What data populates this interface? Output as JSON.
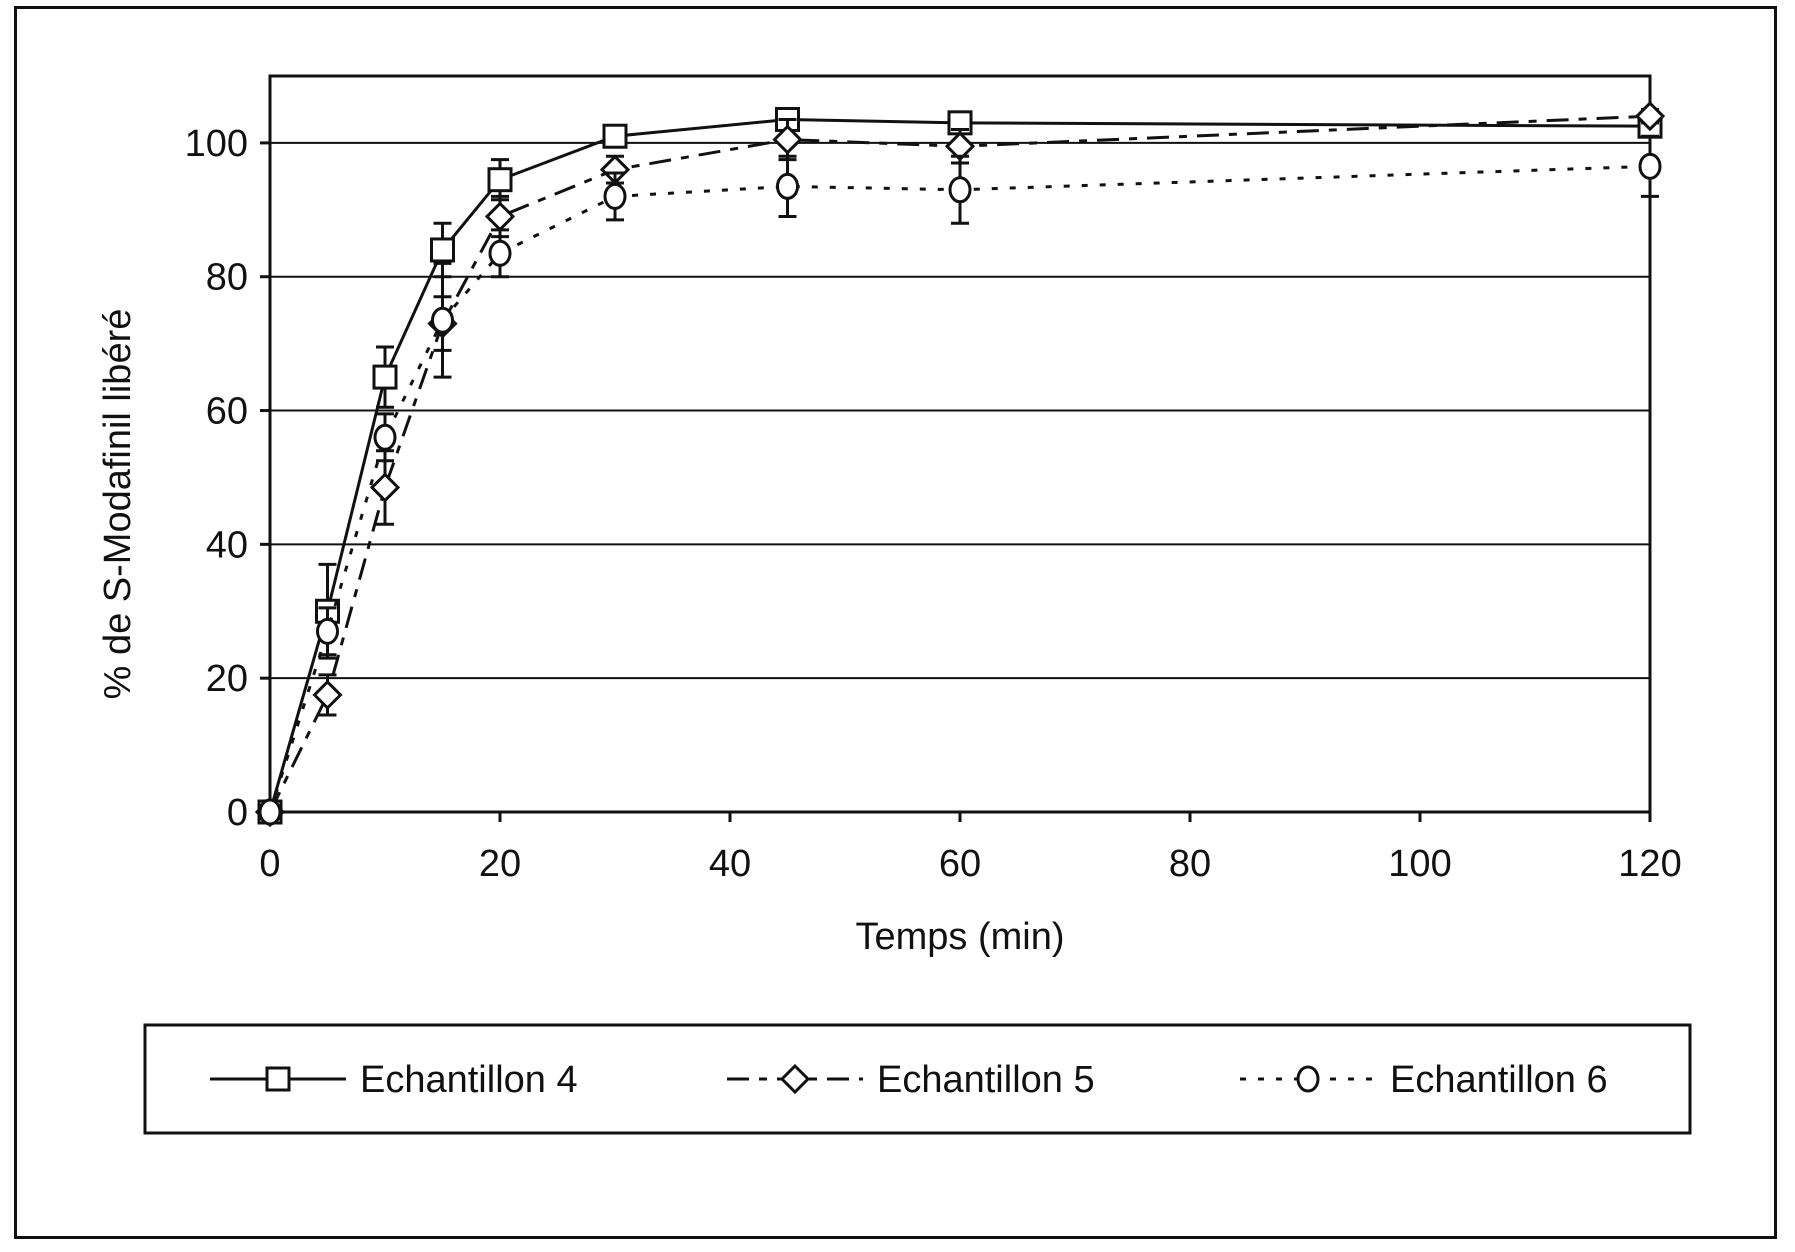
{
  "chart_data": {
    "type": "line",
    "title": "",
    "xlabel": "Temps (min)",
    "ylabel": "% de S-Modafinil libéré",
    "xlim": [
      0,
      120
    ],
    "ylim": [
      0,
      110
    ],
    "x_ticks": [
      "0",
      "20",
      "40",
      "60",
      "80",
      "100",
      "120"
    ],
    "y_ticks": [
      "0",
      "20",
      "40",
      "60",
      "80",
      "100"
    ],
    "grid": "horizontal",
    "legend_position": "bottom",
    "x": [
      0,
      5,
      10,
      15,
      20,
      30,
      45,
      60,
      120
    ],
    "series": [
      {
        "name": "Echantillon 4",
        "marker": "square",
        "line_style": "solid",
        "values": [
          0,
          30,
          65,
          84,
          94.5,
          101,
          103.5,
          103,
          102.5
        ],
        "errors": [
          0,
          7,
          4.5,
          4,
          3,
          1.5,
          1,
          1,
          1
        ]
      },
      {
        "name": "Echantillon 5",
        "marker": "diamond",
        "line_style": "dashed",
        "values": [
          0,
          17.5,
          48.5,
          73,
          89,
          96,
          100.5,
          99.5,
          104
        ],
        "errors": [
          0,
          3,
          5.5,
          4,
          3,
          2,
          3,
          2.5,
          1
        ]
      },
      {
        "name": "Echantillon 6",
        "marker": "circle",
        "line_style": "dotted",
        "values": [
          0,
          27,
          56,
          73.5,
          83.5,
          92,
          93.5,
          93,
          96.5
        ],
        "errors": [
          0,
          3.5,
          3.5,
          8.5,
          3.5,
          3.5,
          4.5,
          5,
          4.5
        ]
      }
    ]
  }
}
